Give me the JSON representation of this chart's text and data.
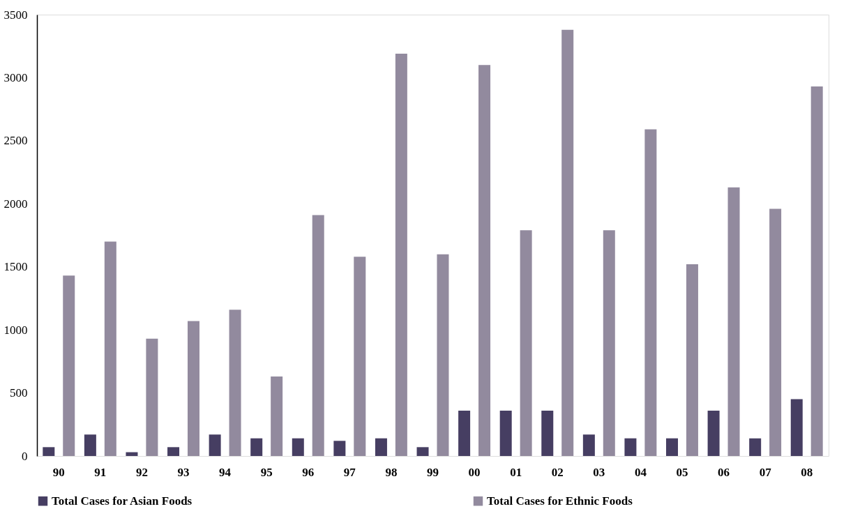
{
  "chart_data": {
    "type": "bar",
    "categories": [
      "90",
      "91",
      "92",
      "93",
      "94",
      "95",
      "96",
      "97",
      "98",
      "99",
      "00",
      "01",
      "02",
      "03",
      "04",
      "05",
      "06",
      "07",
      "08"
    ],
    "series": [
      {
        "name": "Total Cases for Asian Foods",
        "color": "#463e62",
        "values": [
          70,
          170,
          30,
          70,
          170,
          140,
          140,
          120,
          140,
          70,
          360,
          360,
          360,
          170,
          140,
          140,
          360,
          140,
          450
        ]
      },
      {
        "name": "Total Cases for Ethnic Foods",
        "color": "#928a9e",
        "values": [
          1430,
          1700,
          930,
          1070,
          1160,
          630,
          1910,
          1580,
          3190,
          1600,
          3100,
          1790,
          3380,
          1790,
          2590,
          1520,
          2130,
          1960,
          2930
        ]
      }
    ],
    "ylim": [
      0,
      3500
    ],
    "yticks": [
      0,
      500,
      1000,
      1500,
      2000,
      2500,
      3000,
      3500
    ],
    "grid": false,
    "legend": "bottom"
  }
}
